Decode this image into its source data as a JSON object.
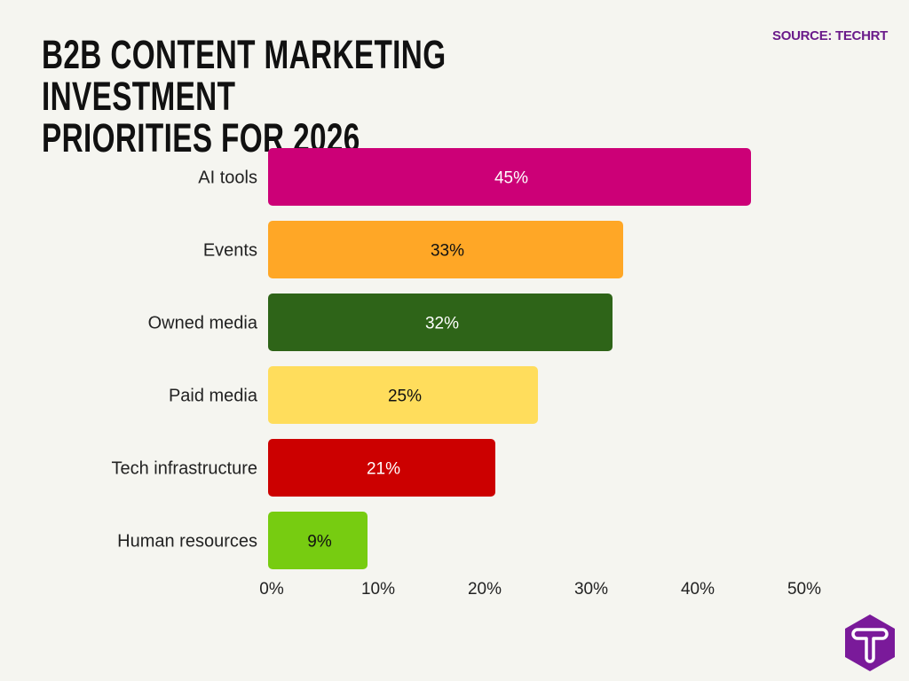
{
  "title_line1": "B2B CONTENT MARKETING INVESTMENT",
  "title_line2": "PRIORITIES FOR 2026",
  "source": "SOURCE: TECHRT",
  "logo_letter": "T",
  "chart_data": {
    "type": "bar",
    "orientation": "horizontal",
    "categories": [
      "AI tools",
      "Events",
      "Owned media",
      "Paid media",
      "Tech infrastructure",
      "Human resources"
    ],
    "values": [
      45,
      33,
      32,
      25,
      21,
      9
    ],
    "data_labels": [
      "45%",
      "33%",
      "32%",
      "25%",
      "21%",
      "9%"
    ],
    "colors": [
      "#cc0077",
      "#ffa726",
      "#2e6418",
      "#ffdd5c",
      "#cc0000",
      "#77cc11"
    ],
    "label_colors": [
      "#ffffff",
      "#111111",
      "#ffffff",
      "#111111",
      "#ffffff",
      "#111111"
    ],
    "xlim": [
      0,
      50
    ],
    "xticks": [
      0,
      10,
      20,
      30,
      40,
      50
    ],
    "xtick_labels": [
      "0%",
      "10%",
      "20%",
      "30%",
      "40%",
      "50%"
    ],
    "grid": false
  }
}
